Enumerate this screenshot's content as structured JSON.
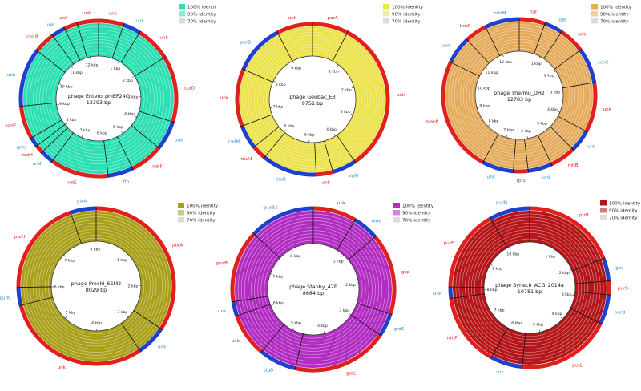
{
  "colors": {
    "forward": "#e0201c",
    "reverse": "#1f3fcc",
    "label_forward": "#e0201c",
    "label_reverse": "#2f8fd8",
    "identity_70": "#dcdcdc"
  },
  "panels": [
    {
      "id": "entero",
      "title": "phage Entero_phiEF24C",
      "size_label": "12393 bp",
      "length": 12393,
      "color": "#2de0b4",
      "legend": [
        "100% identit",
        "90% identity",
        "70% identity"
      ],
      "kbp_ticks": [
        "1 kbp",
        "2 kbp",
        "3 kbp",
        "4 kbp",
        "5 kbp",
        "6 kbp",
        "7 kbp",
        "8 kbp",
        "9 kbp",
        "10 kbp",
        "11 kbp",
        "12 kbp"
      ],
      "genes": [
        {
          "name": "unk",
          "start": 0,
          "end": 650,
          "strand": "+"
        },
        {
          "name": "unk",
          "start": 650,
          "end": 1100,
          "strand": "-"
        },
        {
          "name": "unk",
          "start": 1100,
          "end": 2000,
          "strand": "+"
        },
        {
          "name": "ctaD",
          "start": 2000,
          "end": 3700,
          "strand": "+"
        },
        {
          "name": "unk",
          "start": 3700,
          "end": 4450,
          "strand": "-"
        },
        {
          "name": "ndrF",
          "start": 4450,
          "end": 5300,
          "strand": "+"
        },
        {
          "name": "ftn",
          "start": 5300,
          "end": 5950,
          "strand": "-"
        },
        {
          "name": "nrdE",
          "start": 5950,
          "end": 7450,
          "strand": "+"
        },
        {
          "name": "nrdI",
          "start": 7450,
          "end": 7800,
          "strand": "-"
        },
        {
          "name": "nrdH",
          "start": 7800,
          "end": 8000,
          "strand": "+"
        },
        {
          "name": "rpmJ",
          "start": 8000,
          "end": 8250,
          "strand": "-"
        },
        {
          "name": "nadE",
          "start": 8250,
          "end": 9100,
          "strand": "+"
        },
        {
          "name": "unk",
          "start": 9100,
          "end": 10600,
          "strand": "-"
        },
        {
          "name": "cmtR",
          "start": 10600,
          "end": 11150,
          "strand": "+"
        },
        {
          "name": "unk",
          "start": 11150,
          "end": 11500,
          "strand": "-"
        },
        {
          "name": "unk",
          "start": 11500,
          "end": 11850,
          "strand": "+"
        },
        {
          "name": "unk",
          "start": 11850,
          "end": 12393,
          "strand": "+"
        }
      ]
    },
    {
      "id": "geobac",
      "title": "phage Geobac_E3",
      "size_label": "9751 bp",
      "length": 9751,
      "color": "#ebe24c",
      "legend": [
        "100% identity",
        "90% identity",
        "70% identity"
      ],
      "kbp_ticks": [
        "1 kbp",
        "2 kbp",
        "3 kbp",
        "4 kbp",
        "5 kbp",
        "6 kbp",
        "7 kbp",
        "8 kbp",
        "9 kbp"
      ],
      "genes": [
        {
          "name": "porA",
          "start": 0,
          "end": 750,
          "strand": "+"
        },
        {
          "name": "unk",
          "start": 750,
          "end": 3950,
          "strand": "+"
        },
        {
          "name": "sigM",
          "start": 3950,
          "end": 4450,
          "strand": "-"
        },
        {
          "name": "unk",
          "start": 4450,
          "end": 4800,
          "strand": "+"
        },
        {
          "name": "trxB",
          "start": 4800,
          "end": 5950,
          "strand": "-"
        },
        {
          "name": "trxA1",
          "start": 5950,
          "end": 6250,
          "strand": "+"
        },
        {
          "name": "cwlM",
          "start": 6250,
          "end": 6750,
          "strand": "-"
        },
        {
          "name": "unk",
          "start": 6750,
          "end": 7950,
          "strand": "+"
        },
        {
          "name": "parB",
          "start": 7950,
          "end": 9000,
          "strand": "-"
        },
        {
          "name": "unk",
          "start": 9000,
          "end": 9751,
          "strand": "+"
        }
      ]
    },
    {
      "id": "thermu",
      "title": "phage Thermu_DH2",
      "size_label": "12783 bp",
      "length": 12783,
      "color": "#e5ac5e",
      "legend": [
        "100% identity",
        "90% identity",
        "70% identity"
      ],
      "kbp_ticks": [
        "1 kbp",
        "2 kbp",
        "3 kbp",
        "4 kbp",
        "5 kbp",
        "6 kbp",
        "7 kbp",
        "8 kbp",
        "9 kbp",
        "10 kbp",
        "11 kbp",
        "12 kbp"
      ],
      "genes": [
        {
          "name": "tuf",
          "start": 0,
          "end": 700,
          "strand": "+"
        },
        {
          "name": "rplB",
          "start": 700,
          "end": 1200,
          "strand": "-"
        },
        {
          "name": "unk",
          "start": 1200,
          "end": 1900,
          "strand": "+"
        },
        {
          "name": "ecnC",
          "start": 1900,
          "end": 2850,
          "strand": "-"
        },
        {
          "name": "unk",
          "start": 2850,
          "end": 4200,
          "strand": "+"
        },
        {
          "name": "unk",
          "start": 4200,
          "end": 4800,
          "strand": "-"
        },
        {
          "name": "mhB",
          "start": 4800,
          "end": 5500,
          "strand": "+"
        },
        {
          "name": "unk",
          "start": 5500,
          "end": 6150,
          "strand": "-"
        },
        {
          "name": "rplS",
          "start": 6150,
          "end": 6550,
          "strand": "+"
        },
        {
          "name": "unk",
          "start": 6550,
          "end": 7400,
          "strand": "-"
        },
        {
          "name": "manP",
          "start": 7400,
          "end": 10500,
          "strand": "+"
        },
        {
          "name": "unk",
          "start": 10500,
          "end": 11250,
          "strand": "-"
        },
        {
          "name": "trmD",
          "start": 11250,
          "end": 11850,
          "strand": "+"
        },
        {
          "name": "nimM",
          "start": 11850,
          "end": 12783,
          "strand": "-"
        }
      ]
    },
    {
      "id": "prochl",
      "title": "phage Prochl_SSM2",
      "size_label": "8029 bp",
      "length": 8029,
      "color": "#a9a11c",
      "legend": [
        "100% identity",
        "90% identity",
        "70% identity"
      ],
      "kbp_ticks": [
        "1 kbp",
        "2 kbp",
        "3 kbp",
        "4 kbp",
        "5 kbp",
        "6 kbp",
        "7 kbp",
        "8 kbp"
      ],
      "genes": [
        {
          "name": "porA",
          "start": 0,
          "end": 2750,
          "strand": "+"
        },
        {
          "name": "unk",
          "start": 2750,
          "end": 3250,
          "strand": "-"
        },
        {
          "name": "unk",
          "start": 3250,
          "end": 5700,
          "strand": "+"
        },
        {
          "name": "purN",
          "start": 5700,
          "end": 6000,
          "strand": "-"
        },
        {
          "name": "purH",
          "start": 6000,
          "end": 7600,
          "strand": "+"
        },
        {
          "name": "glxA",
          "start": 7600,
          "end": 8029,
          "strand": "-"
        }
      ]
    },
    {
      "id": "staphy",
      "title": "phage Staphy_42E",
      "size_label": "8684 bp",
      "length": 8684,
      "color": "#b22ec2",
      "legend": [
        "100% identity",
        "90% identity",
        "70% identity"
      ],
      "kbp_ticks": [
        "1 kbp",
        "2 kbp",
        "3 kbp",
        "4 kbp",
        "5 kbp",
        "6 kbp",
        "7 kbp",
        "8 kbp"
      ],
      "genes": [
        {
          "name": "unk",
          "start": 0,
          "end": 750,
          "strand": "+"
        },
        {
          "name": "nimI",
          "start": 750,
          "end": 1200,
          "strand": "-"
        },
        {
          "name": "gsp",
          "start": 1200,
          "end": 2600,
          "strand": "+"
        },
        {
          "name": "groS",
          "start": 2600,
          "end": 3000,
          "strand": "-"
        },
        {
          "name": "groL",
          "start": 3000,
          "end": 4650,
          "strand": "+"
        },
        {
          "name": "sigD",
          "start": 4650,
          "end": 5300,
          "strand": "-"
        },
        {
          "name": "unk",
          "start": 5300,
          "end": 6050,
          "strand": "+"
        },
        {
          "name": "unk",
          "start": 6050,
          "end": 6300,
          "strand": "-"
        },
        {
          "name": "guaB",
          "start": 6300,
          "end": 7550,
          "strand": "+"
        },
        {
          "name": "guaB2",
          "start": 7550,
          "end": 8684,
          "strand": "-"
        }
      ]
    },
    {
      "id": "synech",
      "title": "phage Synech_ACG_2014a",
      "size_label": "10781 bp",
      "length": 10781,
      "color": "#b5161a",
      "legend": [
        "100% identity",
        "90% identity",
        "70% identity"
      ],
      "kbp_ticks": [
        "1 kbp",
        "2 kbp",
        "3 kbp",
        "4 kbp",
        "5 kbp",
        "6 kbp",
        "7 kbp",
        "8 kbp",
        "9 kbp",
        "10 kbp"
      ],
      "genes": [
        {
          "name": "ptrB",
          "start": 0,
          "end": 2050,
          "strand": "+"
        },
        {
          "name": "gpx",
          "start": 2050,
          "end": 2550,
          "strand": "-"
        },
        {
          "name": "purS",
          "start": 2550,
          "end": 2850,
          "strand": "+"
        },
        {
          "name": "purQ",
          "start": 2850,
          "end": 3500,
          "strand": "-"
        },
        {
          "name": "purL",
          "start": 3500,
          "end": 5550,
          "strand": "+"
        },
        {
          "name": "unk",
          "start": 5550,
          "end": 6250,
          "strand": "-"
        },
        {
          "name": "nrdF",
          "start": 6250,
          "end": 7850,
          "strand": "+"
        },
        {
          "name": "unk",
          "start": 7850,
          "end": 8100,
          "strand": "-"
        },
        {
          "name": "purF",
          "start": 8100,
          "end": 9900,
          "strand": "+"
        },
        {
          "name": "purM",
          "start": 9900,
          "end": 10781,
          "strand": "-"
        }
      ]
    }
  ]
}
